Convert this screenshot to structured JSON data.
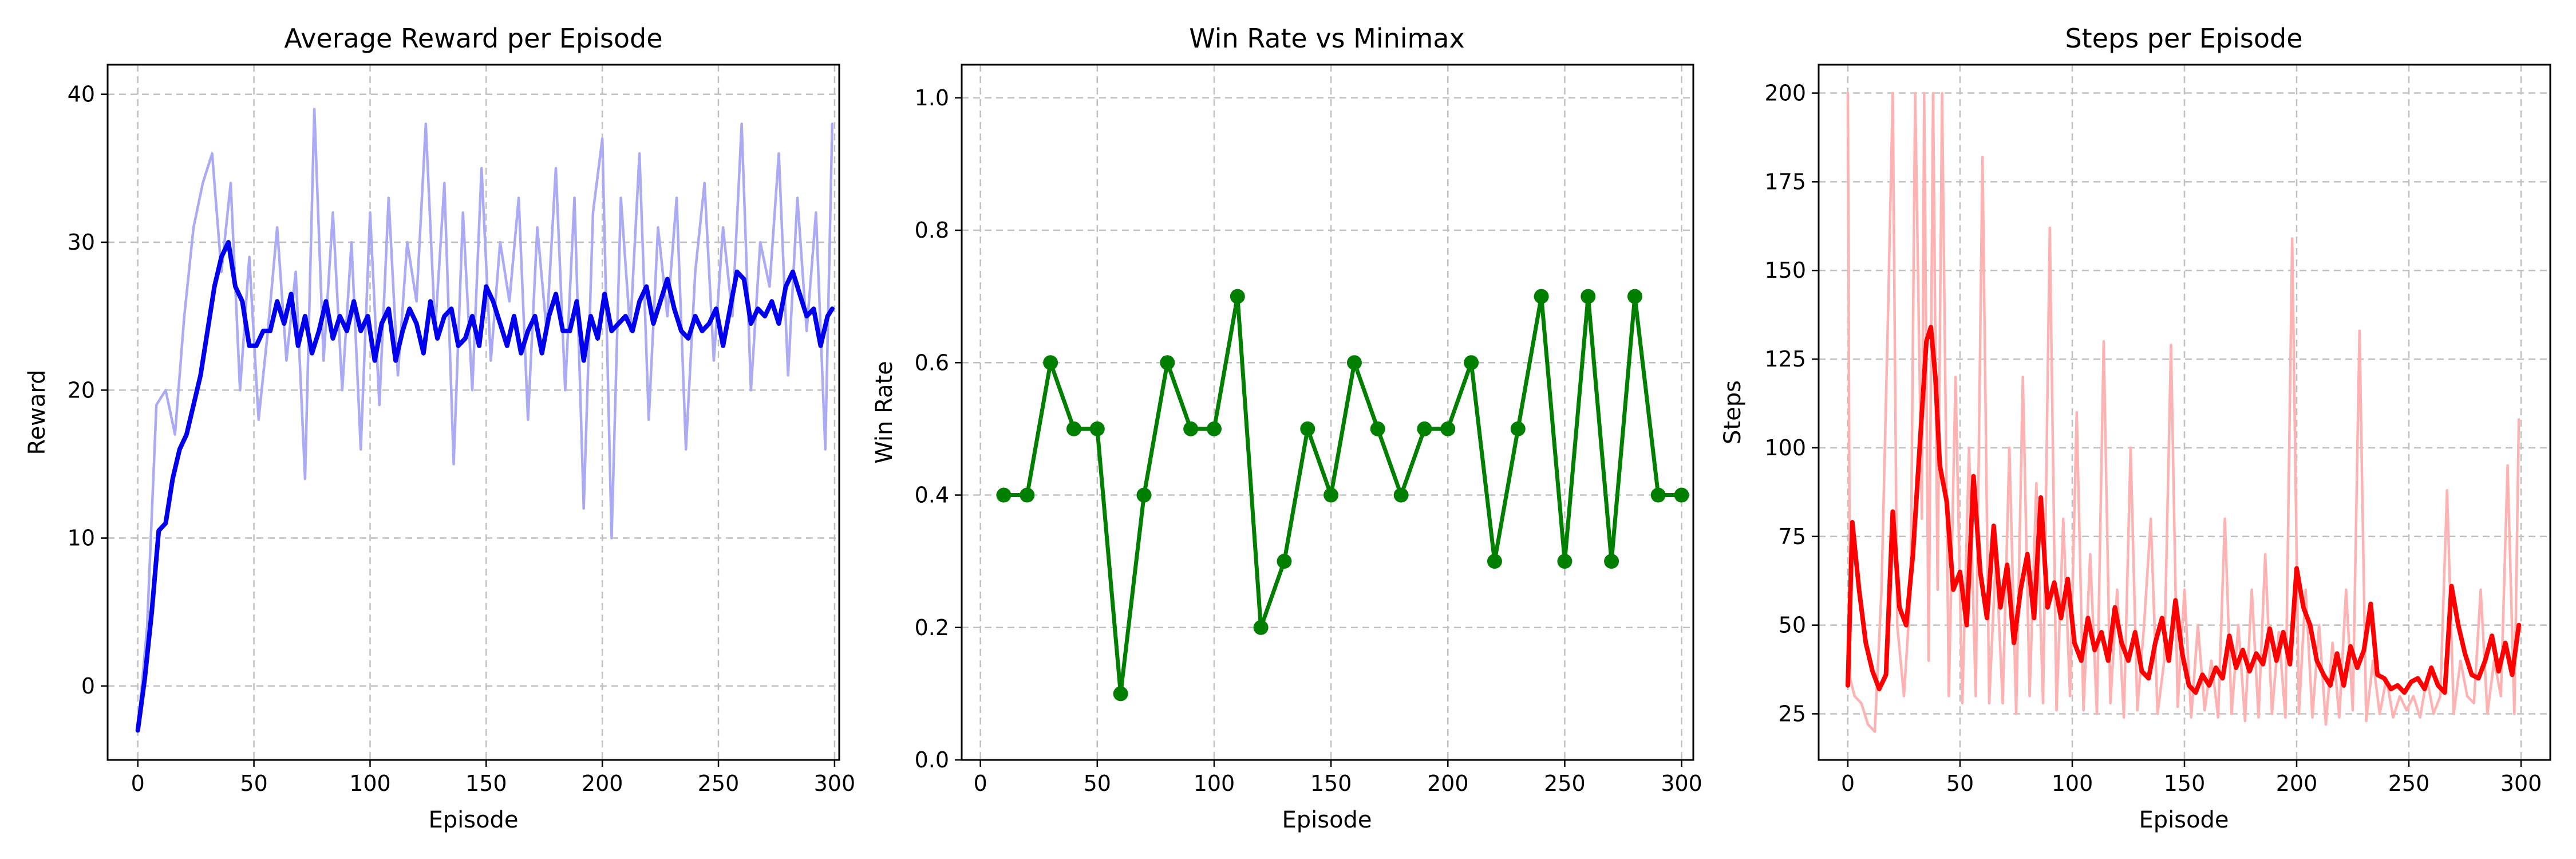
{
  "colors": {
    "reward_raw": "#aaaaf5",
    "reward_smooth": "#0000ee",
    "winrate": "#007f00",
    "steps_raw": "#ffb2b2",
    "steps_smooth": "#ff0000",
    "grid": "#c0c0c0"
  },
  "chart_data": [
    {
      "type": "line",
      "title": "Average Reward per Episode",
      "xlabel": "Episode",
      "ylabel": "Reward",
      "xlim": [
        -13,
        302
      ],
      "ylim": [
        -5,
        42
      ],
      "xticks": [
        0,
        50,
        100,
        150,
        200,
        250,
        300
      ],
      "yticks": [
        0,
        10,
        20,
        30,
        40
      ],
      "grid": true,
      "series": [
        {
          "role": "raw",
          "x": [
            0,
            4,
            8,
            12,
            16,
            20,
            24,
            28,
            32,
            36,
            40,
            44,
            48,
            52,
            56,
            60,
            64,
            68,
            72,
            76,
            80,
            84,
            88,
            92,
            96,
            100,
            104,
            108,
            112,
            116,
            120,
            124,
            128,
            132,
            136,
            140,
            144,
            148,
            152,
            156,
            160,
            164,
            168,
            172,
            176,
            180,
            184,
            188,
            192,
            196,
            200,
            204,
            208,
            212,
            216,
            220,
            224,
            228,
            232,
            236,
            240,
            244,
            248,
            252,
            256,
            260,
            264,
            268,
            272,
            276,
            280,
            284,
            288,
            292,
            296,
            299
          ],
          "values": [
            -3,
            4,
            19,
            20,
            17,
            25,
            31,
            34,
            36,
            28,
            34,
            20,
            29,
            18,
            24,
            31,
            22,
            28,
            14,
            39,
            22,
            32,
            20,
            30,
            16,
            32,
            19,
            33,
            21,
            30,
            26,
            38,
            24,
            34,
            15,
            32,
            20,
            35,
            22,
            30,
            26,
            33,
            18,
            31,
            24,
            35,
            20,
            33,
            12,
            32,
            37,
            10,
            33,
            24,
            36,
            18,
            31,
            25,
            33,
            16,
            28,
            34,
            22,
            31,
            25,
            38,
            20,
            30,
            27,
            36,
            21,
            33,
            24,
            32,
            16,
            38
          ]
        },
        {
          "role": "smoothed",
          "x": [
            0,
            3,
            6,
            9,
            12,
            15,
            18,
            21,
            24,
            27,
            30,
            33,
            36,
            39,
            42,
            45,
            48,
            51,
            54,
            57,
            60,
            63,
            66,
            69,
            72,
            75,
            78,
            81,
            84,
            87,
            90,
            93,
            96,
            99,
            102,
            105,
            108,
            111,
            114,
            117,
            120,
            123,
            126,
            129,
            132,
            135,
            138,
            141,
            144,
            147,
            150,
            153,
            156,
            159,
            162,
            165,
            168,
            171,
            174,
            177,
            180,
            183,
            186,
            189,
            192,
            195,
            198,
            201,
            204,
            207,
            210,
            213,
            216,
            219,
            222,
            225,
            228,
            231,
            234,
            237,
            240,
            243,
            246,
            249,
            252,
            255,
            258,
            261,
            264,
            267,
            270,
            273,
            276,
            279,
            282,
            285,
            288,
            291,
            294,
            297,
            299
          ],
          "values": [
            -3,
            0.5,
            5,
            10.5,
            11,
            14,
            16,
            17,
            19,
            21,
            24,
            27,
            29,
            30,
            27,
            26,
            23,
            23,
            24,
            24,
            26,
            24.5,
            26.5,
            23,
            25,
            22.5,
            24,
            26,
            23.5,
            25,
            24,
            26,
            24,
            25,
            22,
            24.5,
            25.5,
            22,
            24,
            25.5,
            24.5,
            22.5,
            26,
            23.5,
            25,
            25.5,
            23,
            23.5,
            25,
            23,
            27,
            26,
            24.5,
            23,
            25,
            22.5,
            24,
            25,
            22.5,
            25,
            26.5,
            24,
            24,
            26,
            22,
            25,
            23.5,
            26.5,
            24,
            24.5,
            25,
            24,
            26,
            27,
            24.5,
            26,
            27.5,
            25.5,
            24,
            23.5,
            25,
            24,
            24.5,
            25.5,
            23,
            25.5,
            28,
            27.5,
            24.5,
            25.5,
            25,
            26,
            24.5,
            27,
            28,
            26.5,
            25,
            25.5,
            23,
            25,
            25.5
          ]
        }
      ]
    },
    {
      "type": "line",
      "title": "Win Rate vs Minimax",
      "xlabel": "",
      "ylabel": "Win Rate",
      "xlim": [
        -8,
        305
      ],
      "ylim": [
        0,
        1.05
      ],
      "xticks": [
        0,
        50,
        100,
        150,
        200,
        250,
        300
      ],
      "yticks": [
        0.0,
        0.2,
        0.4,
        0.6,
        0.8,
        1.0
      ],
      "grid": true,
      "series": [
        {
          "x": [
            10,
            20,
            30,
            40,
            50,
            60,
            70,
            80,
            90,
            100,
            110,
            120,
            130,
            140,
            150,
            160,
            170,
            180,
            190,
            200,
            210,
            220,
            230,
            240,
            250,
            260,
            270,
            280,
            290,
            300
          ],
          "values": [
            0.4,
            0.4,
            0.6,
            0.5,
            0.5,
            0.1,
            0.4,
            0.6,
            0.5,
            0.5,
            0.7,
            0.2,
            0.3,
            0.5,
            0.4,
            0.6,
            0.5,
            0.4,
            0.5,
            0.5,
            0.6,
            0.3,
            0.5,
            0.7,
            0.3,
            0.7,
            0.3,
            0.7,
            0.4,
            0.4
          ]
        }
      ]
    },
    {
      "type": "line",
      "title": "Steps per Episode",
      "xlabel": "Episode",
      "ylabel": "Steps",
      "xlim": [
        -13,
        313
      ],
      "ylim": [
        12,
        208
      ],
      "xticks": [
        0,
        50,
        100,
        150,
        200,
        250,
        300
      ],
      "yticks": [
        25,
        50,
        75,
        100,
        125,
        150,
        175,
        200
      ],
      "grid": true,
      "series": [
        {
          "role": "raw",
          "x": [
            0,
            1,
            3,
            6,
            9,
            12,
            15,
            18,
            20,
            22,
            25,
            28,
            30,
            33,
            34,
            36,
            38,
            40,
            42,
            45,
            48,
            51,
            54,
            57,
            60,
            63,
            66,
            69,
            72,
            75,
            78,
            81,
            84,
            87,
            90,
            93,
            96,
            99,
            102,
            105,
            108,
            111,
            114,
            117,
            120,
            123,
            126,
            129,
            132,
            135,
            138,
            141,
            144,
            147,
            150,
            153,
            156,
            159,
            162,
            165,
            168,
            171,
            174,
            177,
            180,
            183,
            186,
            189,
            192,
            195,
            198,
            201,
            204,
            207,
            210,
            213,
            216,
            219,
            222,
            225,
            228,
            231,
            234,
            237,
            240,
            243,
            246,
            249,
            252,
            255,
            258,
            261,
            264,
            267,
            270,
            273,
            276,
            279,
            282,
            285,
            288,
            291,
            294,
            297,
            299
          ],
          "values": [
            200,
            35,
            30,
            28,
            22,
            20,
            60,
            140,
            200,
            50,
            30,
            60,
            200,
            80,
            200,
            40,
            200,
            60,
            200,
            30,
            120,
            28,
            100,
            30,
            182,
            28,
            70,
            28,
            100,
            25,
            120,
            30,
            90,
            28,
            162,
            26,
            80,
            30,
            110,
            26,
            70,
            25,
            130,
            28,
            60,
            24,
            100,
            26,
            50,
            80,
            25,
            40,
            129,
            27,
            60,
            24,
            50,
            26,
            40,
            24,
            80,
            25,
            50,
            23,
            60,
            24,
            70,
            25,
            48,
            24,
            159,
            25,
            60,
            24,
            50,
            22,
            45,
            24,
            60,
            26,
            133,
            23,
            40,
            25,
            35,
            24,
            30,
            26,
            30,
            24,
            35,
            25,
            30,
            88,
            25,
            40,
            30,
            28,
            60,
            25,
            40,
            30,
            95,
            25,
            108
          ]
        },
        {
          "role": "smoothed",
          "x": [
            0,
            2,
            5,
            8,
            11,
            14,
            17,
            20,
            23,
            26,
            29,
            32,
            35,
            37,
            39,
            41,
            44,
            47,
            50,
            53,
            56,
            59,
            62,
            65,
            68,
            71,
            74,
            77,
            80,
            83,
            86,
            89,
            92,
            95,
            98,
            101,
            104,
            107,
            110,
            113,
            116,
            119,
            122,
            125,
            128,
            131,
            134,
            137,
            140,
            143,
            146,
            149,
            152,
            155,
            158,
            161,
            164,
            167,
            170,
            173,
            176,
            179,
            182,
            185,
            188,
            191,
            194,
            197,
            200,
            203,
            206,
            209,
            212,
            215,
            218,
            221,
            224,
            227,
            230,
            233,
            236,
            239,
            242,
            245,
            248,
            251,
            254,
            257,
            260,
            263,
            266,
            269,
            272,
            275,
            278,
            281,
            284,
            287,
            290,
            293,
            296,
            299
          ],
          "values": [
            33,
            79,
            60,
            45,
            37,
            32,
            36,
            82,
            55,
            50,
            70,
            100,
            130,
            134,
            120,
            95,
            85,
            60,
            65,
            50,
            92,
            65,
            52,
            78,
            55,
            67,
            45,
            60,
            70,
            52,
            86,
            55,
            62,
            52,
            63,
            45,
            40,
            52,
            43,
            48,
            40,
            55,
            45,
            40,
            48,
            37,
            35,
            45,
            52,
            40,
            57,
            42,
            33,
            31,
            36,
            33,
            38,
            35,
            47,
            38,
            43,
            37,
            42,
            39,
            49,
            40,
            48,
            39,
            66,
            55,
            50,
            40,
            36,
            33,
            42,
            33,
            44,
            38,
            43,
            56,
            36,
            35,
            32,
            33,
            31,
            34,
            35,
            32,
            38,
            33,
            31,
            61,
            50,
            42,
            36,
            35,
            40,
            47,
            37,
            45,
            36,
            50
          ]
        }
      ]
    }
  ]
}
